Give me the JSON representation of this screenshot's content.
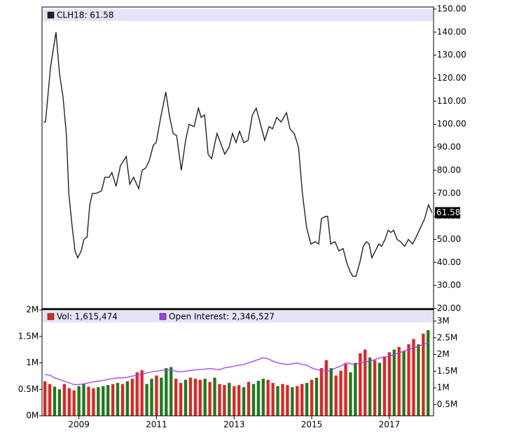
{
  "chart_data": [
    {
      "type": "line",
      "yaxis_position": "right",
      "xlim": [
        2008.05,
        2018.14
      ],
      "ylim": [
        20,
        150
      ],
      "yticks": [
        {
          "value": 20,
          "label": "20.00"
        },
        {
          "value": 30,
          "label": "30.00"
        },
        {
          "value": 40,
          "label": "40.00"
        },
        {
          "value": 50,
          "label": "50.00"
        },
        {
          "value": 60,
          "label": "60.00"
        },
        {
          "value": 70,
          "label": "70.00"
        },
        {
          "value": 80,
          "label": "80.00"
        },
        {
          "value": 90,
          "label": "90.00"
        },
        {
          "value": 100,
          "label": "100.00"
        },
        {
          "value": 110,
          "label": "110.00"
        },
        {
          "value": 120,
          "label": "120.00"
        },
        {
          "value": 130,
          "label": "130.00"
        },
        {
          "value": 140,
          "label": "140.00"
        },
        {
          "value": 150,
          "label": "150.00"
        }
      ],
      "current_value": 61.58,
      "x": [
        2008.09,
        2008.14,
        2008.27,
        2008.41,
        2008.5,
        2008.59,
        2008.68,
        2008.74,
        2008.83,
        2008.9,
        2008.97,
        2009.06,
        2009.13,
        2009.21,
        2009.28,
        2009.35,
        2009.44,
        2009.58,
        2009.67,
        2009.78,
        2009.85,
        2009.96,
        2010.07,
        2010.22,
        2010.31,
        2010.41,
        2010.54,
        2010.63,
        2010.72,
        2010.81,
        2010.92,
        2010.99,
        2011.12,
        2011.24,
        2011.34,
        2011.43,
        2011.52,
        2011.64,
        2011.75,
        2011.84,
        2011.97,
        2012.08,
        2012.15,
        2012.24,
        2012.33,
        2012.42,
        2012.56,
        2012.67,
        2012.76,
        2012.87,
        2012.96,
        2013.05,
        2013.14,
        2013.25,
        2013.36,
        2013.47,
        2013.57,
        2013.68,
        2013.79,
        2013.9,
        2013.99,
        2014.1,
        2014.21,
        2014.35,
        2014.44,
        2014.55,
        2014.66,
        2014.76,
        2014.87,
        2014.98,
        2015.09,
        2015.18,
        2015.25,
        2015.36,
        2015.41,
        2015.49,
        2015.6,
        2015.7,
        2015.81,
        2015.9,
        2015.99,
        2016.06,
        2016.14,
        2016.24,
        2016.33,
        2016.41,
        2016.48,
        2016.55,
        2016.64,
        2016.73,
        2016.8,
        2016.89,
        2016.97,
        2017.04,
        2017.11,
        2017.2,
        2017.29,
        2017.4,
        2017.49,
        2017.6,
        2017.69,
        2017.8,
        2017.91,
        2018.01,
        2018.1
      ],
      "series": [
        {
          "name": "CLH18: 61.58",
          "color": "#222222",
          "values": [
            101,
            101,
            125,
            140,
            122,
            112,
            95,
            70,
            55,
            45,
            42,
            45,
            50,
            51,
            65,
            70,
            70,
            71,
            77,
            77,
            79,
            73,
            82,
            86,
            74,
            77,
            72,
            80,
            81,
            84,
            91,
            92,
            104,
            114,
            103,
            96,
            95,
            80,
            93,
            100,
            99,
            107,
            103,
            104,
            87,
            85,
            96,
            91,
            87,
            90,
            96,
            92,
            97,
            92,
            93,
            104,
            107,
            100,
            93,
            99,
            98,
            103,
            101,
            105,
            98,
            96,
            90,
            70,
            55,
            48,
            49,
            48,
            59,
            60,
            60,
            48,
            49,
            45,
            46,
            40,
            36,
            34,
            34,
            40,
            47,
            49,
            48,
            42,
            45,
            48,
            47,
            50,
            54,
            53,
            54,
            50,
            49,
            47,
            50,
            48,
            51,
            55,
            59,
            65,
            61.58
          ]
        }
      ]
    },
    {
      "type": "bar",
      "xlim": [
        2008.05,
        2018.14
      ],
      "xticks": [
        2009,
        2011,
        2013,
        2015,
        2017
      ],
      "ylim": [
        0,
        2000000
      ],
      "yticks": [
        {
          "value": 0,
          "label": "0M"
        },
        {
          "value": 500000,
          "label": "0.5M"
        },
        {
          "value": 1000000,
          "label": "1M"
        },
        {
          "value": 1500000,
          "label": "1.5M"
        },
        {
          "value": 2000000,
          "label": "2M"
        }
      ],
      "y2lim": [
        164000,
        3336000
      ],
      "y2ticks": [
        {
          "value": 500000,
          "label": "0.5M"
        },
        {
          "value": 1000000,
          "label": "1M"
        },
        {
          "value": 1500000,
          "label": "1.5M"
        },
        {
          "value": 2000000,
          "label": "2M"
        },
        {
          "value": 2500000,
          "label": "2.5M"
        },
        {
          "value": 3000000,
          "label": "3M"
        }
      ],
      "x": [
        2008.125,
        2008.25,
        2008.375,
        2008.5,
        2008.625,
        2008.75,
        2008.875,
        2009,
        2009.125,
        2009.25,
        2009.375,
        2009.5,
        2009.625,
        2009.75,
        2009.875,
        2010,
        2010.125,
        2010.25,
        2010.375,
        2010.5,
        2010.625,
        2010.75,
        2010.875,
        2011,
        2011.125,
        2011.25,
        2011.375,
        2011.5,
        2011.625,
        2011.75,
        2011.875,
        2012,
        2012.125,
        2012.25,
        2012.375,
        2012.5,
        2012.625,
        2012.75,
        2012.875,
        2013,
        2013.125,
        2013.25,
        2013.375,
        2013.5,
        2013.625,
        2013.75,
        2013.875,
        2014,
        2014.125,
        2014.25,
        2014.375,
        2014.5,
        2014.625,
        2014.75,
        2014.875,
        2015,
        2015.125,
        2015.25,
        2015.375,
        2015.5,
        2015.625,
        2015.75,
        2015.875,
        2016,
        2016.125,
        2016.25,
        2016.375,
        2016.5,
        2016.625,
        2016.75,
        2016.875,
        2017,
        2017.125,
        2017.25,
        2017.375,
        2017.5,
        2017.625,
        2017.75,
        2017.875,
        2018
      ],
      "series": [
        {
          "name": "Vol: 1,615,474",
          "color": "#e52222",
          "colors": [
            "#e52222",
            "#e52222",
            "#1a7a1a",
            "#1a7a1a",
            "#e52222",
            "#e52222",
            "#e52222",
            "#1a7a1a",
            "#1a7a1a",
            "#e52222",
            "#e52222",
            "#1a7a1a",
            "#1a7a1a",
            "#1a7a1a",
            "#e52222",
            "#1a7a1a",
            "#e52222",
            "#1a7a1a",
            "#e52222",
            "#e52222",
            "#e52222",
            "#1a7a1a",
            "#1a7a1a",
            "#e52222",
            "#1a7a1a",
            "#1a7a1a",
            "#1a7a1a",
            "#e52222",
            "#e52222",
            "#1a7a1a",
            "#e52222",
            "#e52222",
            "#e52222",
            "#1a7a1a",
            "#e52222",
            "#1a7a1a",
            "#e52222",
            "#e52222",
            "#1a7a1a",
            "#e52222",
            "#e52222",
            "#1a7a1a",
            "#e52222",
            "#1a7a1a",
            "#1a7a1a",
            "#1a7a1a",
            "#e52222",
            "#e52222",
            "#1a7a1a",
            "#e52222",
            "#e52222",
            "#1a7a1a",
            "#e52222",
            "#e52222",
            "#1a7a1a",
            "#e52222",
            "#1a7a1a",
            "#e52222",
            "#e52222",
            "#1a7a1a",
            "#e52222",
            "#e52222",
            "#e52222",
            "#1a7a1a",
            "#1a7a1a",
            "#e52222",
            "#e52222",
            "#1a7a1a",
            "#e52222",
            "#1a7a1a",
            "#e52222",
            "#e52222",
            "#1a7a1a",
            "#e52222",
            "#1a7a1a",
            "#e52222",
            "#e52222",
            "#1a7a1a",
            "#e52222",
            "#1a7a1a"
          ],
          "values": [
            650000,
            600000,
            550000,
            500000,
            600000,
            520000,
            480000,
            560000,
            600000,
            550000,
            520000,
            540000,
            560000,
            580000,
            600000,
            620000,
            600000,
            650000,
            700000,
            820000,
            860000,
            600000,
            700000,
            760000,
            720000,
            900000,
            920000,
            700000,
            620000,
            680000,
            720000,
            700000,
            680000,
            700000,
            640000,
            720000,
            600000,
            580000,
            620000,
            560000,
            580000,
            540000,
            640000,
            600000,
            660000,
            700000,
            680000,
            620000,
            560000,
            600000,
            580000,
            540000,
            560000,
            600000,
            620000,
            680000,
            720000,
            900000,
            1050000,
            900000,
            760000,
            850000,
            980000,
            820000,
            1000000,
            1180000,
            1250000,
            1100000,
            1050000,
            1000000,
            1120000,
            1200000,
            1250000,
            1300000,
            1220000,
            1350000,
            1450000,
            1350000,
            1550000,
            1615474
          ]
        },
        {
          "name": "Open Interest: 2,346,527",
          "type": "line",
          "axis": "y2",
          "color": "#a040f0",
          "values": [
            1400000,
            1380000,
            1300000,
            1250000,
            1200000,
            1150000,
            1100000,
            1100000,
            1120000,
            1150000,
            1180000,
            1200000,
            1220000,
            1250000,
            1280000,
            1300000,
            1300000,
            1320000,
            1350000,
            1380000,
            1400000,
            1450000,
            1480000,
            1500000,
            1520000,
            1550000,
            1530000,
            1500000,
            1480000,
            1500000,
            1520000,
            1540000,
            1550000,
            1560000,
            1580000,
            1560000,
            1540000,
            1600000,
            1620000,
            1650000,
            1680000,
            1700000,
            1750000,
            1800000,
            1850000,
            1900000,
            1870000,
            1800000,
            1750000,
            1720000,
            1700000,
            1720000,
            1750000,
            1700000,
            1680000,
            1600000,
            1550000,
            1520000,
            1500000,
            1520000,
            1600000,
            1650000,
            1750000,
            1720000,
            1700000,
            1750000,
            1780000,
            1800000,
            1850000,
            1900000,
            1920000,
            1950000,
            2000000,
            2050000,
            2100000,
            2150000,
            2200000,
            2250000,
            2300000,
            2346527
          ]
        }
      ]
    }
  ]
}
